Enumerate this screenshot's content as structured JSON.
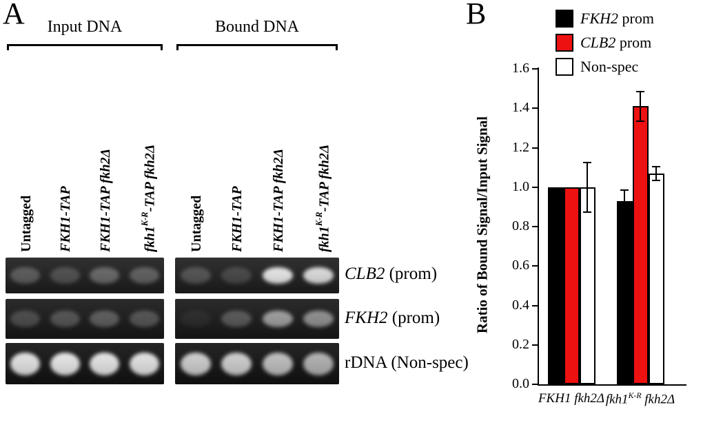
{
  "figure": {
    "panelA_label": "A",
    "panelB_label": "B"
  },
  "panelA": {
    "group_headers": [
      "Input DNA",
      "Bound DNA"
    ],
    "lane_labels": [
      {
        "parts": [
          {
            "t": "Untagged"
          }
        ],
        "style": "bold"
      },
      {
        "parts": [
          {
            "t": "FKH1-TAP"
          }
        ],
        "style": "italic"
      },
      {
        "parts": [
          {
            "t": "FKH1-TAP fkh2Δ"
          }
        ],
        "style": "italic"
      },
      {
        "parts": [
          {
            "t": "fkh1"
          },
          {
            "t": "K-R",
            "sup": true
          },
          {
            "t": "-TAP fkh2Δ"
          }
        ],
        "style": "italic"
      }
    ],
    "rows": [
      {
        "gene": "CLB2",
        "rest": " (prom)",
        "bg": "#212121",
        "band_height": 0.45,
        "input_bands": [
          0.28,
          0.22,
          0.34,
          0.3
        ],
        "bound_bands": [
          0.24,
          0.18,
          0.97,
          0.92
        ]
      },
      {
        "gene": "FKH2",
        "rest": " (prom)",
        "bg": "#1b1b1b",
        "band_height": 0.42,
        "input_bands": [
          0.22,
          0.26,
          0.3,
          0.26
        ],
        "bound_bands": [
          0.06,
          0.28,
          0.62,
          0.55
        ]
      },
      {
        "gene": "rDNA",
        "rest": " (Non-spec)",
        "bg": "#141414",
        "band_height": 0.55,
        "input_bands": [
          0.95,
          0.97,
          0.96,
          0.95
        ],
        "bound_bands": [
          0.85,
          0.85,
          0.78,
          0.72
        ]
      }
    ]
  },
  "panelB": {
    "legend": [
      {
        "label_gene": "FKH2",
        "label_rest": " prom",
        "color": "#000000"
      },
      {
        "label_gene": "CLB2",
        "label_rest": " prom",
        "color": "#ee1111"
      },
      {
        "label_gene": "",
        "label_rest": "Non-spec",
        "color": "#ffffff"
      }
    ]
  },
  "chart_data": {
    "type": "bar",
    "title": "",
    "xlabel": "",
    "ylabel": "Ratio of Bound Signal/Input Signal",
    "ylim": [
      0.0,
      1.6
    ],
    "ytick_step": 0.2,
    "grid": false,
    "legend_position": "top-right",
    "categories": [
      "FKH1 fkh2Δ",
      "fkh1K-R fkh2Δ"
    ],
    "categories_rich": [
      [
        {
          "t": "FKH1 fkh2Δ"
        }
      ],
      [
        {
          "t": "fkh1"
        },
        {
          "t": "K-R",
          "sup": true
        },
        {
          "t": " fkh2Δ"
        }
      ]
    ],
    "series": [
      {
        "name": "FKH2 prom",
        "color": "#000000",
        "values": [
          1.0,
          0.93
        ],
        "errors": [
          0.0,
          0.055
        ]
      },
      {
        "name": "CLB2 prom",
        "color": "#ee1111",
        "values": [
          1.0,
          1.41
        ],
        "errors": [
          0.0,
          0.075
        ]
      },
      {
        "name": "Non-spec",
        "color": "#ffffff",
        "values": [
          1.0,
          1.07
        ],
        "errors": [
          0.125,
          0.035
        ]
      }
    ]
  }
}
